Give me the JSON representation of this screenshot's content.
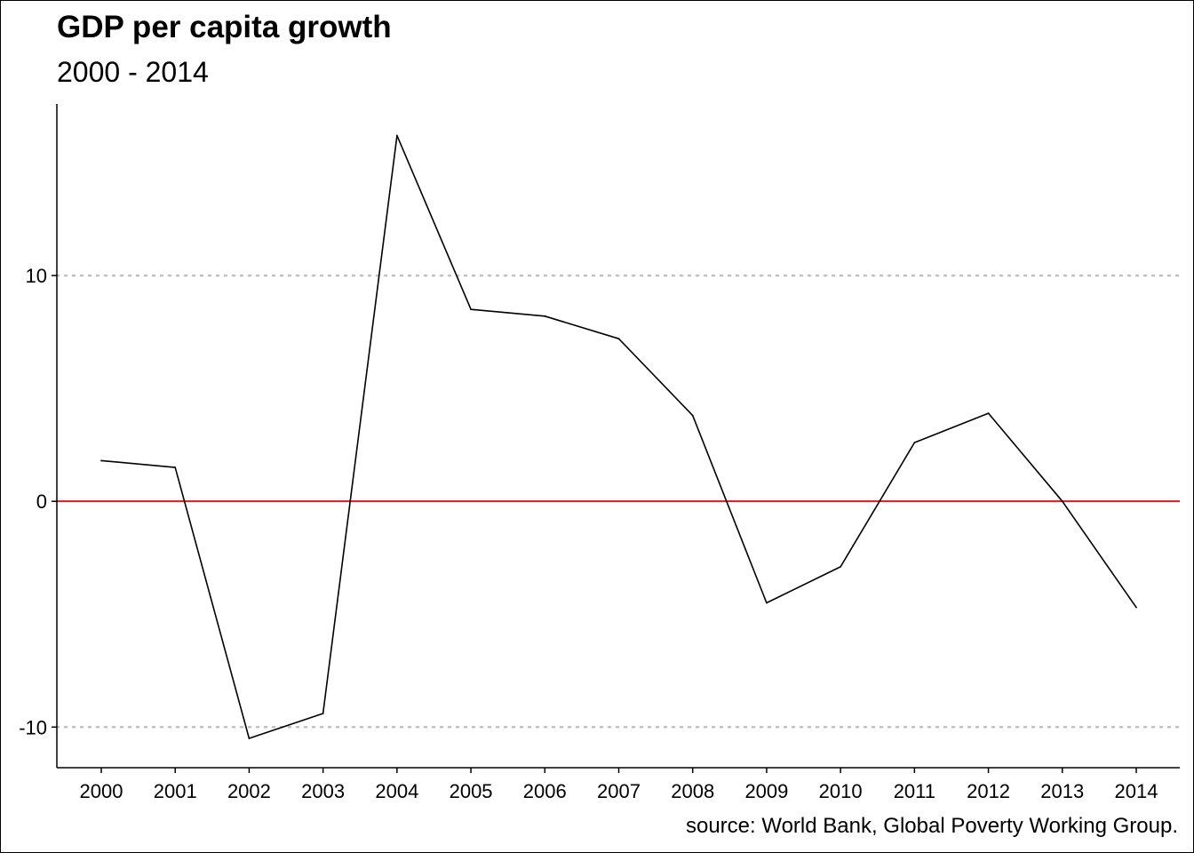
{
  "chart_data": {
    "type": "line",
    "title": "GDP per capita growth",
    "subtitle": "2000 - 2014",
    "caption": "source: World Bank, Global Poverty Working Group.",
    "xlabel": "",
    "ylabel": "",
    "x": [
      "2000",
      "2001",
      "2002",
      "2003",
      "2004",
      "2005",
      "2006",
      "2007",
      "2008",
      "2009",
      "2010",
      "2011",
      "2012",
      "2013",
      "2014"
    ],
    "series": [
      {
        "values": [
          1.8,
          1.5,
          -10.5,
          -9.4,
          16.2,
          8.5,
          8.2,
          7.2,
          3.8,
          -4.5,
          -2.9,
          2.6,
          3.9,
          0.0,
          -4.7
        ]
      }
    ],
    "yticks": [
      -10,
      0,
      10
    ],
    "ylim": [
      -11.8,
      17.6
    ],
    "gridlines": [
      -10,
      10
    ],
    "reference_line": {
      "y": 0,
      "color": "#e41a1c"
    },
    "line_color": "#000000",
    "grid_color": "#c0c0c0",
    "legend": "none"
  }
}
